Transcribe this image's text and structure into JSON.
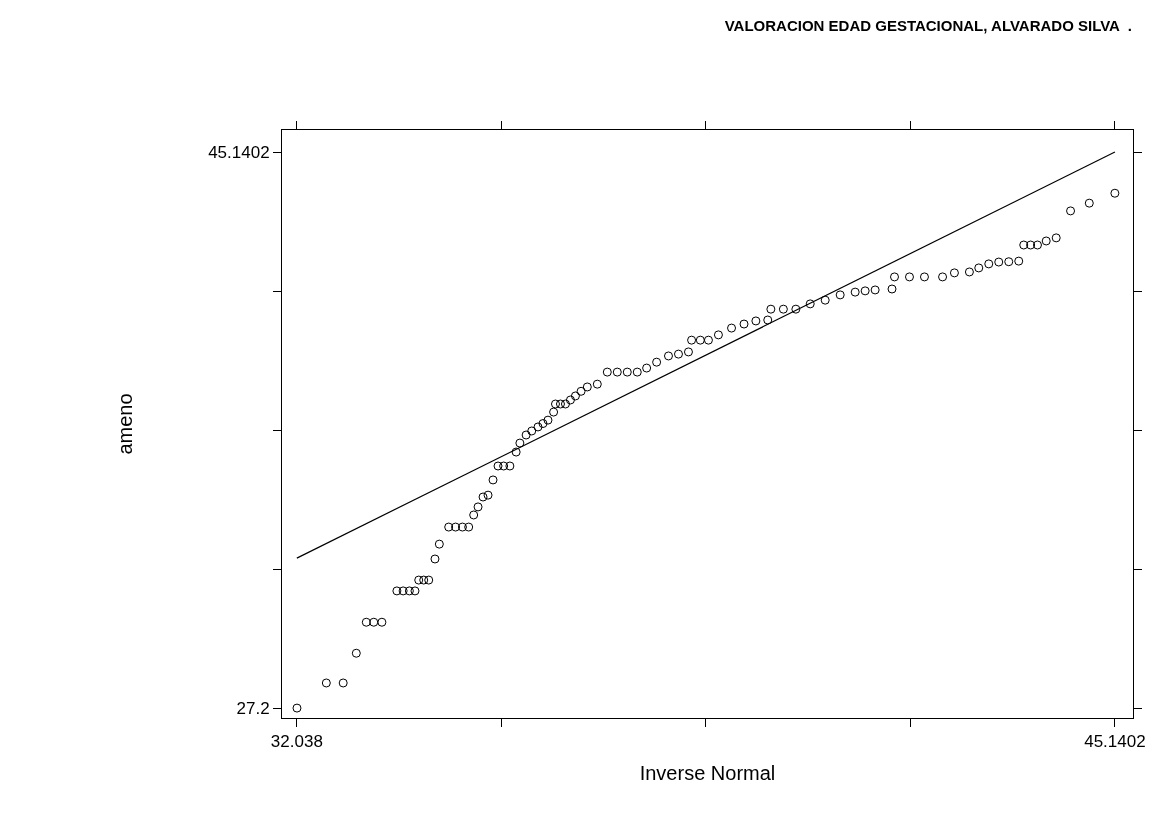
{
  "chart_data": {
    "type": "scatter",
    "title": "VALORACION EDAD GESTACIONAL, ALVARADO SILVA  .",
    "xlabel": "Inverse Normal",
    "ylabel": "ameno",
    "series": [
      {
        "color": "#000000",
        "marker": "circle",
        "x": [
          32.04,
          32.51,
          32.78,
          32.99,
          33.15,
          33.27,
          33.4,
          33.64,
          33.74,
          33.84,
          33.93,
          33.99,
          34.07,
          34.15,
          34.25,
          34.32,
          34.47,
          34.58,
          34.69,
          34.79,
          34.87,
          34.94,
          35.02,
          35.1,
          35.18,
          35.26,
          35.35,
          35.45,
          35.55,
          35.61,
          35.71,
          35.8,
          35.9,
          35.98,
          36.06,
          36.15,
          36.18,
          36.26,
          36.34,
          36.42,
          36.5,
          36.59,
          36.69,
          36.85,
          37.01,
          37.17,
          37.33,
          37.49,
          37.64,
          37.8,
          37.99,
          38.15,
          38.31,
          38.36,
          38.5,
          38.63,
          38.79,
          39.0,
          39.2,
          39.39,
          39.58,
          39.63,
          39.83,
          40.03,
          40.26,
          40.5,
          40.74,
          40.98,
          41.14,
          41.3,
          41.57,
          41.61,
          41.85,
          42.09,
          42.38,
          42.57,
          42.81,
          42.96,
          43.12,
          43.28,
          43.44,
          43.6,
          43.68,
          43.79,
          43.9,
          44.04,
          44.2,
          44.43,
          44.73,
          45.14
        ],
        "values": [
          27.2,
          28.01,
          28.01,
          28.97,
          29.97,
          29.97,
          29.97,
          30.98,
          30.98,
          30.98,
          30.98,
          31.33,
          31.33,
          31.33,
          32.01,
          32.49,
          33.04,
          33.04,
          33.04,
          33.04,
          33.43,
          33.69,
          34.01,
          34.07,
          34.56,
          35.01,
          35.01,
          35.01,
          35.46,
          35.75,
          36.01,
          36.14,
          36.27,
          36.38,
          36.49,
          36.75,
          37.01,
          37.01,
          37.01,
          37.14,
          37.27,
          37.42,
          37.56,
          37.65,
          38.04,
          38.04,
          38.04,
          38.04,
          38.17,
          38.36,
          38.56,
          38.62,
          38.69,
          39.07,
          39.07,
          39.07,
          39.24,
          39.46,
          39.59,
          39.69,
          39.72,
          40.07,
          40.07,
          40.07,
          40.24,
          40.36,
          40.53,
          40.62,
          40.66,
          40.69,
          40.72,
          41.11,
          41.11,
          41.11,
          41.11,
          41.24,
          41.27,
          41.4,
          41.53,
          41.59,
          41.6,
          41.62,
          42.14,
          42.14,
          42.14,
          42.27,
          42.37,
          43.24,
          43.49,
          43.81
        ]
      },
      {
        "type": "line",
        "color": "#000000",
        "line_style": "solid",
        "x": [
          32.038,
          45.1402
        ],
        "values": [
          32.038,
          45.1402
        ]
      }
    ],
    "xlim": [
      31.8,
      45.43
    ],
    "ylim": [
      26.88,
      45.85
    ],
    "xticks": [
      32.038,
      {
        "value": 35.3136,
        "label": null
      },
      {
        "value": 38.589,
        "label": null
      },
      {
        "value": 41.8646,
        "label": null
      },
      45.1402
    ],
    "yticks": [
      27.2,
      {
        "value": 31.685,
        "label": null
      },
      {
        "value": 36.17,
        "label": null
      },
      {
        "value": 40.655,
        "label": null
      },
      45.1402
    ],
    "tick_labels": true
  }
}
